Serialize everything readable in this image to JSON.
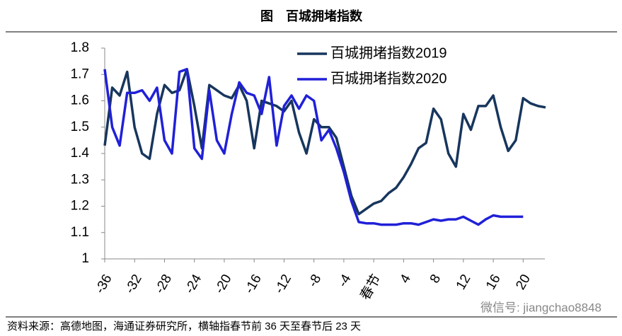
{
  "chart_data": {
    "type": "line",
    "title": "图　百城拥堵指数",
    "source": "资料来源：高德地图，海通证券研究所，横轴指春节前 36 天至春节后 23 天",
    "watermark": "微信号: jiangchao8848",
    "x": [
      -36,
      -35,
      -34,
      -33,
      -32,
      -31,
      -30,
      -29,
      -28,
      -27,
      -26,
      -25,
      -24,
      -23,
      -22,
      -21,
      -20,
      -19,
      -18,
      -17,
      -16,
      -15,
      -14,
      -13,
      -12,
      -11,
      -10,
      -9,
      -8,
      -7,
      -6,
      -5,
      -4,
      -3,
      -2,
      -1,
      0,
      1,
      2,
      3,
      4,
      5,
      6,
      7,
      8,
      9,
      10,
      11,
      12,
      13,
      14,
      15,
      16,
      17,
      18,
      19,
      20,
      21,
      22,
      23
    ],
    "series": [
      {
        "name": "百城拥堵指数2019",
        "color": "#17365d",
        "values": [
          1.43,
          1.65,
          1.62,
          1.71,
          1.5,
          1.4,
          1.38,
          1.55,
          1.66,
          1.63,
          1.64,
          1.72,
          1.58,
          1.42,
          1.66,
          1.64,
          1.62,
          1.61,
          1.66,
          1.6,
          1.42,
          1.6,
          1.59,
          1.58,
          1.56,
          1.6,
          1.48,
          1.4,
          1.53,
          1.5,
          1.5,
          1.46,
          1.35,
          1.24,
          1.17,
          1.19,
          1.21,
          1.22,
          1.25,
          1.27,
          1.31,
          1.36,
          1.42,
          1.44,
          1.57,
          1.53,
          1.4,
          1.35,
          1.55,
          1.49,
          1.58,
          1.58,
          1.62,
          1.5,
          1.41,
          1.45,
          1.61,
          1.59,
          1.58,
          1.575
        ]
      },
      {
        "name": "百城拥堵指数2020",
        "color": "#2020d8",
        "values": [
          1.72,
          1.5,
          1.43,
          1.63,
          1.63,
          1.64,
          1.6,
          1.65,
          1.45,
          1.4,
          1.71,
          1.72,
          1.42,
          1.38,
          1.64,
          1.45,
          1.4,
          1.55,
          1.67,
          1.63,
          1.62,
          1.55,
          1.69,
          1.43,
          1.58,
          1.62,
          1.57,
          1.62,
          1.6,
          1.45,
          1.49,
          1.42,
          1.33,
          1.22,
          1.14,
          1.135,
          1.135,
          1.13,
          1.13,
          1.13,
          1.135,
          1.135,
          1.13,
          1.14,
          1.15,
          1.145,
          1.15,
          1.15,
          1.16,
          1.145,
          1.13,
          1.15,
          1.165,
          1.16,
          1.16,
          1.16,
          1.16,
          null,
          null,
          null
        ]
      }
    ],
    "xlim": [
      -36,
      23
    ],
    "xticks": [
      -36,
      -32,
      -28,
      -24,
      -20,
      -16,
      -12,
      -8,
      -4,
      {
        "value": 0,
        "label": "春节"
      },
      4,
      8,
      12,
      16,
      20
    ],
    "ylim": [
      1,
      1.8
    ],
    "yticks": [
      1,
      1.1,
      1.2,
      1.3,
      1.4,
      1.5,
      1.6,
      1.7,
      1.8
    ],
    "legend": "top-right"
  }
}
